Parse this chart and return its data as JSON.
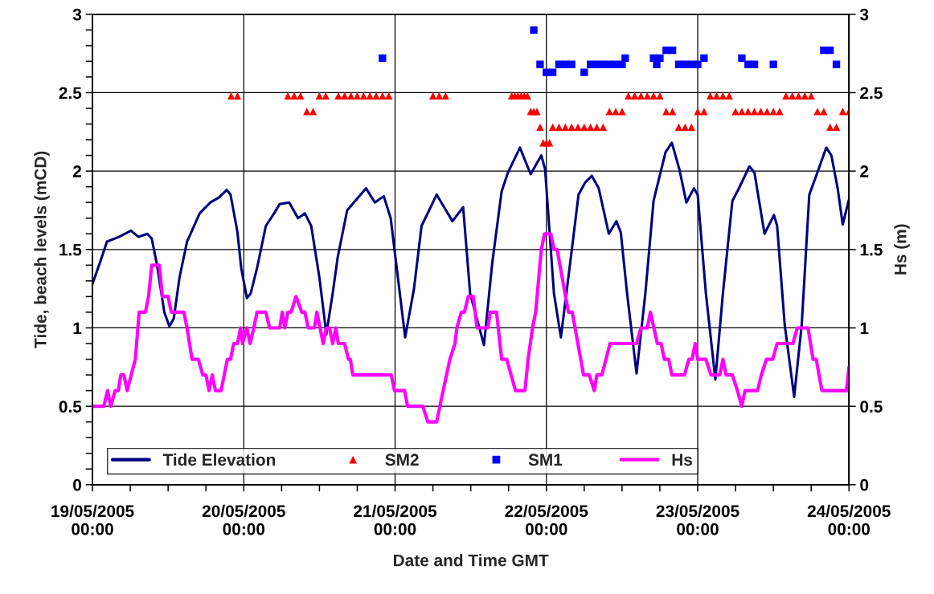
{
  "chart_data": {
    "type": "line",
    "xlabel": "Date and Time GMT",
    "ylabel": "Tide, beach levels (mCD)",
    "y2label": "Hs (m)",
    "xlim": [
      "2005-05-19T00:00",
      "2005-05-24T00:00"
    ],
    "xticks": [
      {
        "value": "2005-05-19T00:00",
        "label": "19/05/2005\n00:00"
      },
      {
        "value": "2005-05-19T06:00",
        "label": null
      },
      {
        "value": "2005-05-19T12:00",
        "label": null
      },
      {
        "value": "2005-05-19T18:00",
        "label": null
      },
      {
        "value": "2005-05-20T00:00",
        "label": "20/05/2005\n00:00"
      },
      {
        "value": "2005-05-20T06:00",
        "label": null
      },
      {
        "value": "2005-05-20T12:00",
        "label": null
      },
      {
        "value": "2005-05-20T18:00",
        "label": null
      },
      {
        "value": "2005-05-21T00:00",
        "label": "21/05/2005\n00:00"
      },
      {
        "value": "2005-05-21T06:00",
        "label": null
      },
      {
        "value": "2005-05-21T12:00",
        "label": null
      },
      {
        "value": "2005-05-21T18:00",
        "label": null
      },
      {
        "value": "2005-05-22T00:00",
        "label": "22/05/2005\n00:00"
      },
      {
        "value": "2005-05-22T06:00",
        "label": null
      },
      {
        "value": "2005-05-22T12:00",
        "label": null
      },
      {
        "value": "2005-05-22T18:00",
        "label": null
      },
      {
        "value": "2005-05-23T00:00",
        "label": "23/05/2005\n00:00"
      },
      {
        "value": "2005-05-23T06:00",
        "label": null
      },
      {
        "value": "2005-05-23T12:00",
        "label": null
      },
      {
        "value": "2005-05-23T18:00",
        "label": null
      },
      {
        "value": "2005-05-24T00:00",
        "label": "24/05/2005\n00:00"
      }
    ],
    "ylim": [
      0,
      3
    ],
    "yticks": [
      0,
      {
        "value": 0.1,
        "label": null
      },
      {
        "value": 0.2,
        "label": null
      },
      {
        "value": 0.3,
        "label": null
      },
      {
        "value": 0.4,
        "label": null
      },
      0.5,
      {
        "value": 0.6,
        "label": null
      },
      {
        "value": 0.7,
        "label": null
      },
      {
        "value": 0.8,
        "label": null
      },
      {
        "value": 0.9,
        "label": null
      },
      1,
      {
        "value": 1.1,
        "label": null
      },
      {
        "value": 1.2,
        "label": null
      },
      {
        "value": 1.3,
        "label": null
      },
      {
        "value": 1.4,
        "label": null
      },
      1.5,
      {
        "value": 1.6,
        "label": null
      },
      {
        "value": 1.7,
        "label": null
      },
      {
        "value": 1.8,
        "label": null
      },
      {
        "value": 1.9,
        "label": null
      },
      2,
      {
        "value": 2.1,
        "label": null
      },
      {
        "value": 2.2,
        "label": null
      },
      {
        "value": 2.3,
        "label": null
      },
      {
        "value": 2.4,
        "label": null
      },
      2.5,
      {
        "value": 2.6,
        "label": null
      },
      {
        "value": 2.7,
        "label": null
      },
      {
        "value": 2.8,
        "label": null
      },
      {
        "value": 2.9,
        "label": null
      },
      3
    ],
    "y2lim": [
      0,
      3
    ],
    "y2ticks": [
      0,
      0.5,
      1,
      1.5,
      2,
      2.5,
      3
    ],
    "grid": true,
    "legend": "bottom",
    "series": [
      {
        "name": "Tide Elevation",
        "color": "#000080",
        "x": [
          "2005-05-19T00:00",
          "2005-05-19T01:18",
          "2005-05-19T02:18",
          "2005-05-19T04:12",
          "2005-05-19T06:06",
          "2005-05-19T07:18",
          "2005-05-19T08:42",
          "2005-05-19T09:24",
          "2005-05-19T10:12",
          "2005-05-19T11:24",
          "2005-05-19T12:12",
          "2005-05-19T12:54",
          "2005-05-19T13:48",
          "2005-05-19T15:00",
          "2005-05-19T17:00",
          "2005-05-19T18:42",
          "2005-05-19T20:00",
          "2005-05-19T21:18",
          "2005-05-19T21:54",
          "2005-05-19T23:00",
          "2005-05-19T23:36",
          "2005-05-20T00:30",
          "2005-05-20T01:06",
          "2005-05-20T02:06",
          "2005-05-20T03:30",
          "2005-05-20T04:48",
          "2005-05-20T05:42",
          "2005-05-20T07:12",
          "2005-05-20T08:36",
          "2005-05-20T09:42",
          "2005-05-20T10:42",
          "2005-05-20T12:00",
          "2005-05-20T13:06",
          "2005-05-20T14:06",
          "2005-05-20T14:54",
          "2005-05-20T16:24",
          "2005-05-20T19:24",
          "2005-05-20T20:48",
          "2005-05-20T22:12",
          "2005-05-20T23:18",
          "2005-05-21T01:36",
          "2005-05-21T03:00",
          "2005-05-21T04:12",
          "2005-05-21T06:36",
          "2005-05-21T09:06",
          "2005-05-21T10:48",
          "2005-05-21T11:54",
          "2005-05-21T14:06",
          "2005-05-21T15:24",
          "2005-05-21T16:54",
          "2005-05-21T17:54",
          "2005-05-21T19:48",
          "2005-05-21T21:30",
          "2005-05-21T23:12",
          "2005-05-21T23:48",
          "2005-05-22T01:12",
          "2005-05-22T02:18",
          "2005-05-22T04:06",
          "2005-05-22T05:06",
          "2005-05-22T06:12",
          "2005-05-22T07:12",
          "2005-05-22T08:18",
          "2005-05-22T09:54",
          "2005-05-22T11:06",
          "2005-05-22T11:48",
          "2005-05-22T12:48",
          "2005-05-22T14:18",
          "2005-05-22T15:42",
          "2005-05-22T17:00",
          "2005-05-22T18:54",
          "2005-05-22T19:54",
          "2005-05-22T21:06",
          "2005-05-22T22:12",
          "2005-05-22T23:24",
          "2005-05-23T00:00",
          "2005-05-23T01:18",
          "2005-05-23T02:48",
          "2005-05-23T04:00",
          "2005-05-23T05:30",
          "2005-05-23T06:18",
          "2005-05-23T08:12",
          "2005-05-23T09:00",
          "2005-05-23T10:36",
          "2005-05-23T12:06",
          "2005-05-23T12:36",
          "2005-05-23T13:48",
          "2005-05-23T15:18",
          "2005-05-23T16:30",
          "2005-05-23T17:42",
          "2005-05-23T18:48",
          "2005-05-23T20:24",
          "2005-05-23T21:12",
          "2005-05-23T22:12",
          "2005-05-23T23:00",
          "2005-05-24T00:00"
        ],
        "values": [
          1.28,
          1.43,
          1.55,
          1.58,
          1.62,
          1.58,
          1.6,
          1.57,
          1.41,
          1.1,
          1.01,
          1.06,
          1.32,
          1.55,
          1.73,
          1.8,
          1.83,
          1.88,
          1.85,
          1.61,
          1.38,
          1.19,
          1.22,
          1.38,
          1.65,
          1.73,
          1.79,
          1.8,
          1.7,
          1.73,
          1.65,
          1.32,
          0.96,
          1.22,
          1.45,
          1.75,
          1.89,
          1.8,
          1.84,
          1.7,
          0.94,
          1.25,
          1.65,
          1.85,
          1.68,
          1.77,
          1.22,
          0.89,
          1.41,
          1.87,
          1.99,
          2.15,
          1.98,
          2.1,
          2.01,
          1.22,
          0.94,
          1.52,
          1.85,
          1.93,
          1.97,
          1.89,
          1.6,
          1.68,
          1.61,
          1.22,
          0.71,
          1.22,
          1.81,
          2.12,
          2.18,
          2.01,
          1.8,
          1.89,
          1.85,
          1.22,
          0.67,
          1.22,
          1.81,
          1.87,
          2.03,
          1.99,
          1.6,
          1.72,
          1.65,
          1.02,
          0.56,
          1.02,
          1.85,
          1.97,
          2.15,
          2.1,
          1.89,
          1.66,
          1.82
        ]
      },
      {
        "name": "SM2",
        "type": "scatter",
        "marker": "triangle",
        "color": "#ff0000",
        "x": [
          "2005-05-19T22:00",
          "2005-05-19T23:00",
          "2005-05-20T07:00",
          "2005-05-20T08:00",
          "2005-05-20T09:00",
          "2005-05-20T10:00",
          "2005-05-20T11:00",
          "2005-05-20T12:00",
          "2005-05-20T13:00",
          "2005-05-20T15:00",
          "2005-05-20T16:00",
          "2005-05-20T17:00",
          "2005-05-20T18:00",
          "2005-05-20T19:00",
          "2005-05-20T20:00",
          "2005-05-20T21:00",
          "2005-05-20T22:00",
          "2005-05-20T23:00",
          "2005-05-21T06:00",
          "2005-05-21T07:00",
          "2005-05-21T08:00",
          "2005-05-21T18:30",
          "2005-05-21T19:00",
          "2005-05-21T19:30",
          "2005-05-21T20:00",
          "2005-05-21T20:30",
          "2005-05-21T21:00",
          "2005-05-21T21:30",
          "2005-05-21T22:00",
          "2005-05-21T22:30",
          "2005-05-21T23:00",
          "2005-05-21T23:30",
          "2005-05-22T00:00",
          "2005-05-22T00:30",
          "2005-05-22T01:00",
          "2005-05-22T02:00",
          "2005-05-22T03:00",
          "2005-05-22T04:00",
          "2005-05-22T05:00",
          "2005-05-22T06:00",
          "2005-05-22T07:00",
          "2005-05-22T08:00",
          "2005-05-22T09:00",
          "2005-05-22T10:00",
          "2005-05-22T11:00",
          "2005-05-22T12:00",
          "2005-05-22T13:00",
          "2005-05-22T14:00",
          "2005-05-22T15:00",
          "2005-05-22T16:00",
          "2005-05-22T17:00",
          "2005-05-22T18:00",
          "2005-05-22T19:00",
          "2005-05-22T20:00",
          "2005-05-22T21:00",
          "2005-05-22T22:00",
          "2005-05-22T23:00",
          "2005-05-23T00:00",
          "2005-05-23T01:00",
          "2005-05-23T02:00",
          "2005-05-23T03:00",
          "2005-05-23T04:00",
          "2005-05-23T05:00",
          "2005-05-23T06:00",
          "2005-05-23T07:00",
          "2005-05-23T08:00",
          "2005-05-23T09:00",
          "2005-05-23T10:00",
          "2005-05-23T11:00",
          "2005-05-23T12:00",
          "2005-05-23T13:00",
          "2005-05-23T14:00",
          "2005-05-23T15:00",
          "2005-05-23T16:00",
          "2005-05-23T17:00",
          "2005-05-23T18:00",
          "2005-05-23T19:00",
          "2005-05-23T20:00",
          "2005-05-23T21:00",
          "2005-05-23T22:00",
          "2005-05-23T23:00",
          "2005-05-24T00:00"
        ],
        "values": [
          2.48,
          2.48,
          2.48,
          2.48,
          2.48,
          2.38,
          2.38,
          2.48,
          2.48,
          2.48,
          2.48,
          2.48,
          2.48,
          2.48,
          2.48,
          2.48,
          2.48,
          2.48,
          2.48,
          2.48,
          2.48,
          2.48,
          2.48,
          2.48,
          2.48,
          2.48,
          2.48,
          2.38,
          2.38,
          2.38,
          2.28,
          2.18,
          2.18,
          2.18,
          2.28,
          2.28,
          2.28,
          2.28,
          2.28,
          2.28,
          2.28,
          2.28,
          2.28,
          2.38,
          2.38,
          2.38,
          2.48,
          2.48,
          2.48,
          2.48,
          2.48,
          2.48,
          2.38,
          2.38,
          2.28,
          2.28,
          2.28,
          2.38,
          2.38,
          2.48,
          2.48,
          2.48,
          2.48,
          2.38,
          2.38,
          2.38,
          2.38,
          2.38,
          2.38,
          2.38,
          2.38,
          2.48,
          2.48,
          2.48,
          2.48,
          2.48,
          2.38,
          2.38,
          2.28,
          2.28,
          2.38,
          2.38
        ]
      },
      {
        "name": "SM1",
        "type": "scatter",
        "marker": "square",
        "color": "#0000ff",
        "x": [
          "2005-05-20T22:00",
          "2005-05-21T22:00",
          "2005-05-21T23:00",
          "2005-05-22T00:00",
          "2005-05-22T01:00",
          "2005-05-22T02:00",
          "2005-05-22T03:00",
          "2005-05-22T04:00",
          "2005-05-22T06:00",
          "2005-05-22T07:00",
          "2005-05-22T08:00",
          "2005-05-22T09:00",
          "2005-05-22T10:00",
          "2005-05-22T11:00",
          "2005-05-22T12:00",
          "2005-05-22T12:30",
          "2005-05-22T17:00",
          "2005-05-22T17:30",
          "2005-05-22T18:00",
          "2005-05-22T19:00",
          "2005-05-22T20:00",
          "2005-05-22T21:00",
          "2005-05-22T22:00",
          "2005-05-22T23:00",
          "2005-05-23T00:00",
          "2005-05-23T01:00",
          "2005-05-23T07:00",
          "2005-05-23T08:00",
          "2005-05-23T09:00",
          "2005-05-23T12:00",
          "2005-05-23T20:00",
          "2005-05-23T21:00",
          "2005-05-23T22:00"
        ],
        "values": [
          2.72,
          2.9,
          2.68,
          2.63,
          2.63,
          2.68,
          2.68,
          2.68,
          2.63,
          2.68,
          2.68,
          2.68,
          2.68,
          2.68,
          2.68,
          2.72,
          2.72,
          2.68,
          2.72,
          2.77,
          2.77,
          2.68,
          2.68,
          2.68,
          2.68,
          2.72,
          2.72,
          2.68,
          2.68,
          2.68,
          2.77,
          2.77,
          2.68
        ]
      },
      {
        "name": "Hs",
        "axis": "y2",
        "color": "#ff00ff",
        "x": [
          "2005-05-19T00:00",
          "2005-05-19T01:48",
          "2005-05-19T02:24",
          "2005-05-19T02:54",
          "2005-05-19T03:36",
          "2005-05-19T04:06",
          "2005-05-19T04:30",
          "2005-05-19T05:00",
          "2005-05-19T05:30",
          "2005-05-19T06:48",
          "2005-05-19T07:00",
          "2005-05-19T07:24",
          "2005-05-19T08:24",
          "2005-05-19T08:54",
          "2005-05-19T09:24",
          "2005-05-19T10:36",
          "2005-05-19T11:06",
          "2005-05-19T12:00",
          "2005-05-19T12:30",
          "2005-05-19T14:30",
          "2005-05-19T15:00",
          "2005-05-19T15:48",
          "2005-05-19T16:48",
          "2005-05-19T17:30",
          "2005-05-19T18:00",
          "2005-05-19T18:30",
          "2005-05-19T19:00",
          "2005-05-19T19:30",
          "2005-05-19T20:24",
          "2005-05-19T21:24",
          "2005-05-19T21:54",
          "2005-05-19T22:24",
          "2005-05-19T23:00",
          "2005-05-19T23:30",
          "2005-05-19T23:48",
          "2005-05-20T00:30",
          "2005-05-20T01:00",
          "2005-05-20T01:36",
          "2005-05-20T02:06",
          "2005-05-20T03:30",
          "2005-05-20T04:06",
          "2005-05-20T05:42",
          "2005-05-20T06:06",
          "2005-05-20T06:30",
          "2005-05-20T07:00",
          "2005-05-20T07:30",
          "2005-05-20T08:18",
          "2005-05-20T09:12",
          "2005-05-20T09:42",
          "2005-05-20T10:12",
          "2005-05-20T11:12",
          "2005-05-20T11:36",
          "2005-05-20T12:06",
          "2005-05-20T12:36",
          "2005-05-20T13:06",
          "2005-05-20T13:36",
          "2005-05-20T14:06",
          "2005-05-20T14:36",
          "2005-05-20T15:00",
          "2005-05-20T16:00",
          "2005-05-20T16:36",
          "2005-05-20T16:54",
          "2005-05-20T17:18",
          "2005-05-20T23:24",
          "2005-05-20T23:54",
          "2005-05-21T01:30",
          "2005-05-21T02:00",
          "2005-05-21T04:24",
          "2005-05-21T05:12",
          "2005-05-21T06:36",
          "2005-05-21T07:06",
          "2005-05-21T08:42",
          "2005-05-21T09:30",
          "2005-05-21T09:48",
          "2005-05-21T10:30",
          "2005-05-21T11:00",
          "2005-05-21T11:36",
          "2005-05-21T12:24",
          "2005-05-21T13:00",
          "2005-05-21T14:42",
          "2005-05-21T15:06",
          "2005-05-21T16:06",
          "2005-05-21T16:54",
          "2005-05-21T17:42",
          "2005-05-21T19:06",
          "2005-05-21T20:36",
          "2005-05-21T21:06",
          "2005-05-21T21:48",
          "2005-05-21T22:18",
          "2005-05-21T23:12",
          "2005-05-21T23:42",
          "2005-05-22T00:42",
          "2005-05-22T01:12",
          "2005-05-22T01:42",
          "2005-05-22T03:30",
          "2005-05-22T04:06",
          "2005-05-22T05:54",
          "2005-05-22T06:48",
          "2005-05-22T07:36",
          "2005-05-22T08:00",
          "2005-05-22T08:48",
          "2005-05-22T10:06",
          "2005-05-22T14:18",
          "2005-05-22T15:00",
          "2005-05-22T16:00",
          "2005-05-22T16:30",
          "2005-05-22T17:36",
          "2005-05-22T18:12",
          "2005-05-22T18:42",
          "2005-05-22T19:24",
          "2005-05-22T19:54",
          "2005-05-22T21:54",
          "2005-05-22T22:36",
          "2005-05-22T23:06",
          "2005-05-22T23:36",
          "2005-05-23T00:00",
          "2005-05-23T01:18",
          "2005-05-23T02:06",
          "2005-05-23T03:30",
          "2005-05-23T04:00",
          "2005-05-23T04:30",
          "2005-05-23T05:30",
          "2005-05-23T06:18",
          "2005-05-23T07:00",
          "2005-05-23T07:30",
          "2005-05-23T09:30",
          "2005-05-23T10:06",
          "2005-05-23T10:54",
          "2005-05-23T11:54",
          "2005-05-23T12:36",
          "2005-05-23T15:06",
          "2005-05-23T15:48",
          "2005-05-23T17:30",
          "2005-05-23T18:18",
          "2005-05-23T18:48",
          "2005-05-23T19:42",
          "2005-05-23T23:36",
          "2005-05-24T00:00"
        ],
        "values": [
          0.5,
          0.5,
          0.6,
          0.5,
          0.6,
          0.6,
          0.7,
          0.7,
          0.6,
          0.8,
          0.9,
          1.1,
          1.1,
          1.2,
          1.4,
          1.4,
          1.2,
          1.2,
          1.1,
          1.1,
          1.0,
          0.8,
          0.8,
          0.7,
          0.7,
          0.6,
          0.7,
          0.6,
          0.6,
          0.8,
          0.8,
          0.9,
          0.9,
          1.0,
          0.9,
          1.0,
          0.9,
          1.0,
          1.1,
          1.1,
          1.0,
          1.0,
          1.1,
          1.0,
          1.1,
          1.1,
          1.2,
          1.1,
          1.1,
          1.0,
          1.0,
          1.1,
          1.0,
          0.9,
          1.0,
          1.0,
          0.9,
          1.0,
          0.9,
          0.9,
          0.8,
          0.8,
          0.7,
          0.7,
          0.6,
          0.6,
          0.5,
          0.5,
          0.4,
          0.4,
          0.5,
          0.8,
          0.9,
          1.0,
          1.1,
          1.1,
          1.2,
          1.2,
          1.0,
          1.0,
          1.1,
          1.1,
          0.8,
          0.8,
          0.6,
          0.6,
          0.8,
          1.0,
          1.1,
          1.5,
          1.6,
          1.6,
          1.5,
          1.5,
          1.1,
          1.1,
          0.7,
          0.7,
          0.6,
          0.7,
          0.7,
          0.9,
          0.9,
          1.0,
          1.0,
          1.1,
          0.9,
          0.9,
          0.8,
          0.8,
          0.7,
          0.7,
          0.8,
          0.8,
          0.9,
          0.8,
          0.8,
          0.7,
          0.7,
          0.8,
          0.7,
          0.7,
          0.6,
          0.5,
          0.6,
          0.6,
          0.7,
          0.8,
          0.8,
          0.9,
          0.9,
          1.0,
          1.0,
          0.8,
          0.8,
          0.6,
          0.6,
          0.75
        ]
      }
    ]
  }
}
